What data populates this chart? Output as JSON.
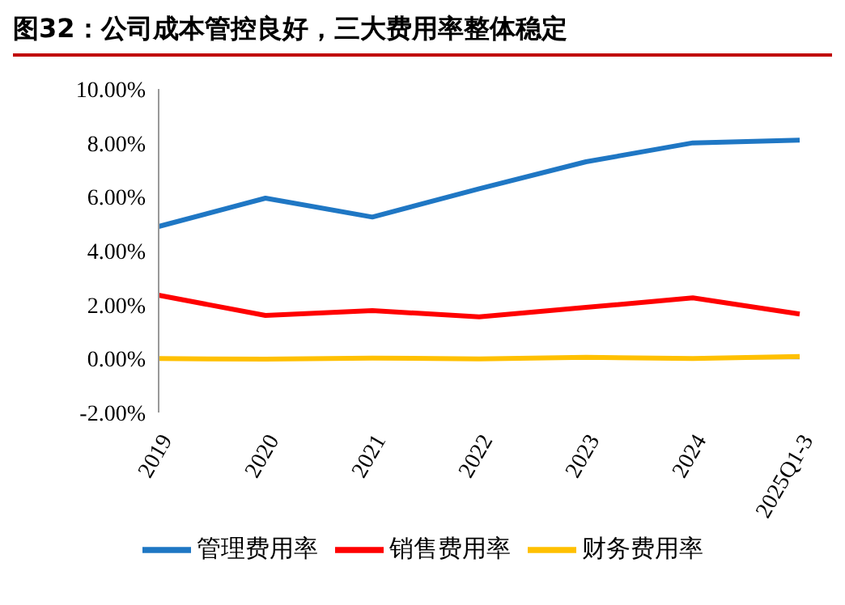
{
  "chart_data": {
    "type": "line",
    "title": "图32：公司成本管控良好，三大费用率整体稳定",
    "categories": [
      "2019",
      "2020",
      "2021",
      "2022",
      "2023",
      "2024",
      "2025Q1-3"
    ],
    "series": [
      {
        "name": "管理费用率",
        "color": "#1f77c4",
        "values": [
          4.9,
          5.95,
          5.25,
          6.3,
          7.3,
          8.0,
          8.1
        ]
      },
      {
        "name": "销售费用率",
        "color": "#ff0000",
        "values": [
          2.35,
          1.6,
          1.78,
          1.55,
          1.9,
          2.25,
          1.65
        ]
      },
      {
        "name": "财务费用率",
        "color": "#ffc000",
        "values": [
          0.0,
          -0.02,
          0.02,
          -0.01,
          0.05,
          0.0,
          0.08
        ]
      }
    ],
    "ylim": [
      -2,
      10
    ],
    "yticks": [
      {
        "value": -2,
        "label": "-2.00%"
      },
      {
        "value": 0,
        "label": "0.00%"
      },
      {
        "value": 2,
        "label": "2.00%"
      },
      {
        "value": 4,
        "label": "4.00%"
      },
      {
        "value": 6,
        "label": "6.00%"
      },
      {
        "value": 8,
        "label": "8.00%"
      },
      {
        "value": 10,
        "label": "10.00%"
      }
    ],
    "ref_lines": [
      {
        "axis": "y",
        "value": 0,
        "color": "#999999"
      }
    ],
    "grid": false,
    "legend": "bottom",
    "marker": "none",
    "line_style": "solid"
  }
}
